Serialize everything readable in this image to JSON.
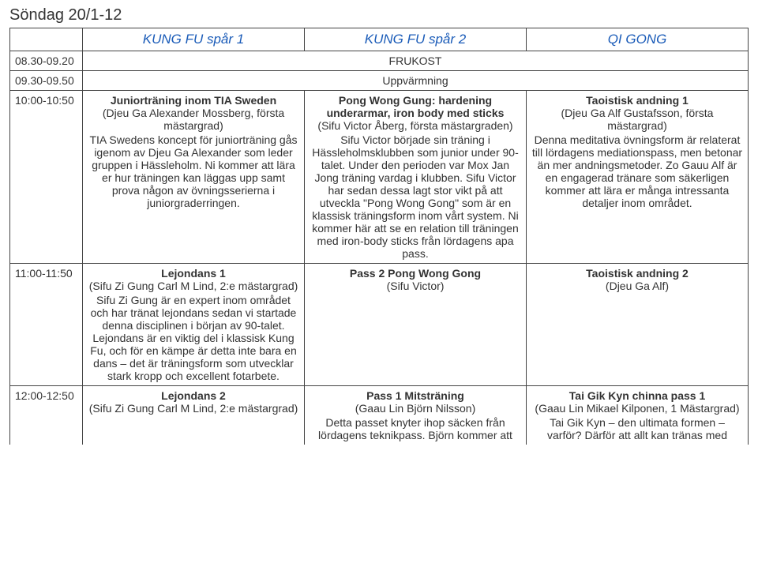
{
  "page": {
    "title": "Söndag 20/1-12"
  },
  "columns": {
    "c1": "KUNG FU spår 1",
    "c2": "KUNG FU spår 2",
    "c3": "QI GONG"
  },
  "rows": {
    "r1": {
      "time": "08.30-09.20",
      "merged": "FRUKOST"
    },
    "r2": {
      "time": "09.30-09.50",
      "merged": "Uppvärmning"
    },
    "r3": {
      "time": "10:00-10:50",
      "c1": {
        "title": "Juniorträning inom TIA Sweden",
        "sub": "(Djeu Ga Alexander Mossberg, första mästargrad)",
        "desc": "TIA Swedens koncept för juniorträning gås igenom av Djeu Ga Alexander som leder gruppen i Hässleholm. Ni kommer att lära er hur träningen kan läggas upp samt prova någon av övningsserierna i juniorgraderringen."
      },
      "c2": {
        "title": "Pong Wong Gung: hardening underarmar, iron body med sticks",
        "sub": "(Sifu Victor Åberg, första mästargraden)",
        "desc": "Sifu Victor började sin träning i Hässleholmsklubben som junior under 90-talet. Under den perioden var Mox Jan Jong träning vardag i klubben. Sifu Victor har sedan dessa lagt stor vikt på att utveckla \"Pong Wong Gong\" som är en klassisk träningsform inom vårt system.\nNi kommer här att se en relation till träningen med iron-body sticks från lördagens apa pass."
      },
      "c3": {
        "title": "Taoistisk andning 1",
        "sub": "(Djeu Ga Alf Gustafsson, första mästargrad)",
        "desc": "Denna meditativa övningsform är relaterat till lördagens mediationspass, men betonar än mer andningsmetoder. Zo Gauu Alf är en engagerad tränare som säkerligen kommer att lära er många intressanta detaljer inom området."
      }
    },
    "r4": {
      "time": "11:00-11:50",
      "c1": {
        "title": "Lejondans 1",
        "sub": "(Sifu Zi Gung Carl M Lind, 2:e mästargrad)",
        "desc": "Sifu Zi Gung är en expert inom området och har tränat lejondans sedan vi startade denna disciplinen i början av 90-talet. Lejondans är en viktig del i klassisk Kung Fu, och för en kämpe är detta inte bara en dans – det är träningsform som utvecklar stark kropp och excellent fotarbete."
      },
      "c2": {
        "title": "Pass 2 Pong Wong Gong",
        "sub": "(Sifu Victor)",
        "desc": ""
      },
      "c3": {
        "title": "Taoistisk andning 2",
        "sub": "(Djeu Ga Alf)",
        "desc": ""
      }
    },
    "r5": {
      "time": "12:00-12:50",
      "c1": {
        "title": "Lejondans 2",
        "sub": "(Sifu Zi Gung Carl M Lind, 2:e mästargrad)",
        "desc": ""
      },
      "c2": {
        "title": "Pass 1 Mitsträning",
        "sub": "(Gaau Lin Björn Nilsson)",
        "desc": "Detta passet knyter ihop säcken från lördagens teknikpass. Björn kommer att"
      },
      "c3": {
        "title": "Tai Gik Kyn chinna pass 1",
        "sub": "(Gaau Lin Mikael Kilponen, 1 Mästargrad)",
        "desc": "Tai Gik Kyn – den ultimata formen – varför? Därför att allt kan tränas med"
      }
    }
  }
}
